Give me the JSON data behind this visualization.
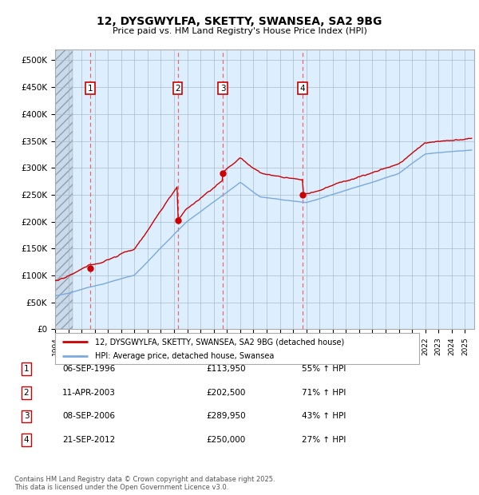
{
  "title": "12, DYSGWYLFA, SKETTY, SWANSEA, SA2 9BG",
  "subtitle": "Price paid vs. HM Land Registry's House Price Index (HPI)",
  "ylim": [
    0,
    520000
  ],
  "yticks": [
    0,
    50000,
    100000,
    150000,
    200000,
    250000,
    300000,
    350000,
    400000,
    450000,
    500000
  ],
  "ytick_labels": [
    "£0",
    "£50K",
    "£100K",
    "£150K",
    "£200K",
    "£250K",
    "£300K",
    "£350K",
    "£400K",
    "£450K",
    "£500K"
  ],
  "xlim_start": 1994.0,
  "xlim_end": 2025.7,
  "hatch_region_end": 1995.3,
  "sale_dates": [
    1996.68,
    2003.27,
    2006.68,
    2012.72
  ],
  "sale_prices": [
    113950,
    202500,
    289950,
    250000
  ],
  "sale_labels": [
    "1",
    "2",
    "3",
    "4"
  ],
  "red_line_color": "#cc0000",
  "blue_line_color": "#7aaadd",
  "plot_bg_color": "#ddeeff",
  "grid_color": "#aabbcc",
  "annotation_box_color": "#cc0000",
  "dashed_line_color": "#ee6666",
  "legend_entries": [
    "12, DYSGWYLFA, SKETTY, SWANSEA, SA2 9BG (detached house)",
    "HPI: Average price, detached house, Swansea"
  ],
  "table_rows": [
    [
      "1",
      "06-SEP-1996",
      "£113,950",
      "55% ↑ HPI"
    ],
    [
      "2",
      "11-APR-2003",
      "£202,500",
      "71% ↑ HPI"
    ],
    [
      "3",
      "08-SEP-2006",
      "£289,950",
      "43% ↑ HPI"
    ],
    [
      "4",
      "21-SEP-2012",
      "£250,000",
      "27% ↑ HPI"
    ]
  ],
  "footnote": "Contains HM Land Registry data © Crown copyright and database right 2025.\nThis data is licensed under the Open Government Licence v3.0.",
  "fig_bg_color": "#ffffff"
}
